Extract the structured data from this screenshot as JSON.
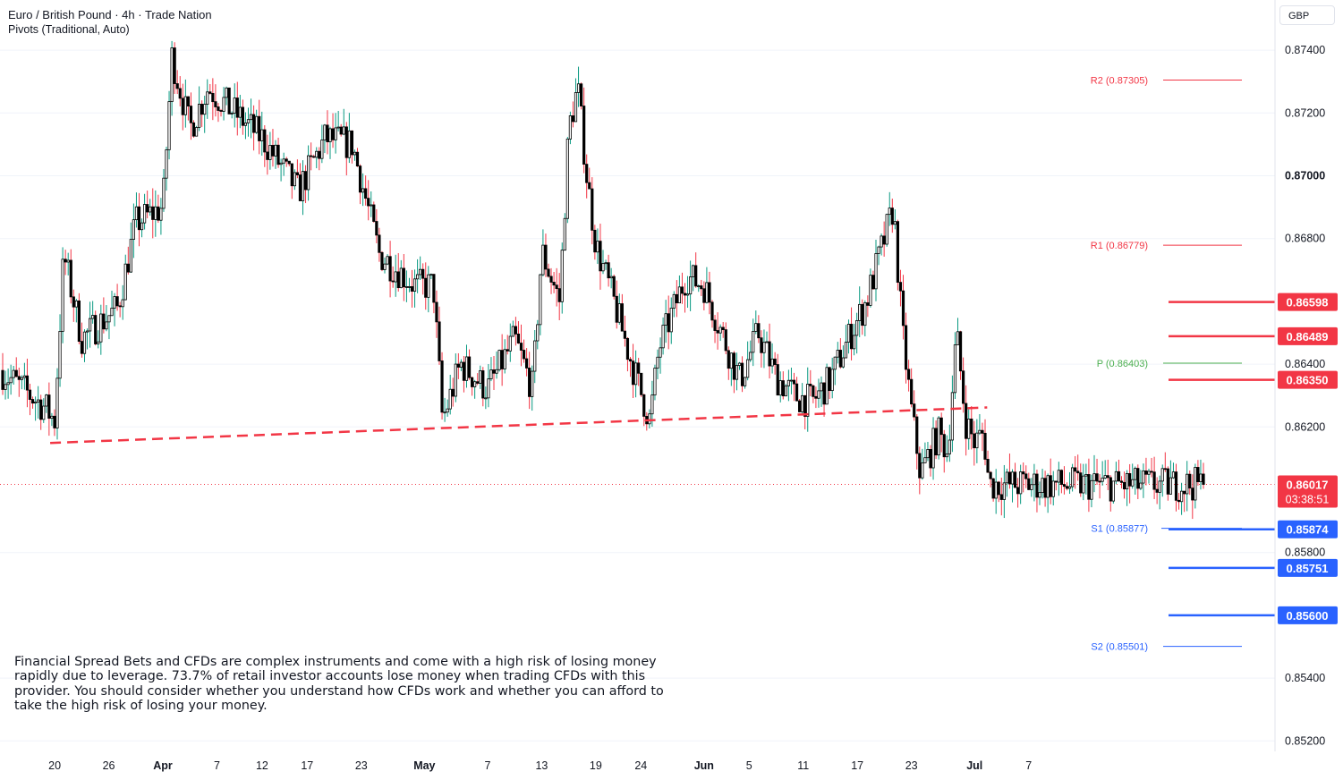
{
  "header": {
    "title": "Euro / British Pound · 4h · Trade Nation",
    "indicator": "Pivots (Traditional, Auto)"
  },
  "currency": "GBP",
  "disclaimer": "Financial Spread Bets and CFDs are complex instruments and come with a high risk of losing money rapidly due to leverage. 73.7% of retail investor accounts lose money when trading CFDs with this provider. You should consider whether you understand how CFDs work and whether you can afford to take the high risk of losing your money.",
  "colors": {
    "up": "#089981",
    "down": "#f23645",
    "body": "#000000",
    "support": "#2962ff",
    "pivot": "#4caf50",
    "trend": "#f23645"
  },
  "chart_data": {
    "type": "candlestick",
    "timeframe": "4h",
    "ylim": [
      0.8514,
      0.8756
    ],
    "y_ticks": [
      "0.87400",
      "0.87200",
      "0.87000",
      "0.86800",
      "0.86400",
      "0.86200",
      "0.85800",
      "0.85400",
      "0.85200"
    ],
    "x_ticks": [
      "20",
      "26",
      "Apr",
      "7",
      "12",
      "17",
      "23",
      "May",
      "7",
      "13",
      "19",
      "24",
      "Jun",
      "5",
      "11",
      "17",
      "23",
      "Jul",
      "7"
    ],
    "close_path": [
      {
        "label": "Mar 14",
        "value": 0.8638
      },
      {
        "label": "Mar 19",
        "value": 0.8626
      },
      {
        "label": "Mar 20",
        "value": 0.8622
      },
      {
        "label": "Mar 21",
        "value": 0.8675
      },
      {
        "label": "Mar 23",
        "value": 0.8648
      },
      {
        "label": "Mar 27",
        "value": 0.8658
      },
      {
        "label": "Mar 29",
        "value": 0.8685
      },
      {
        "label": "Apr 1",
        "value": 0.869
      },
      {
        "label": "Apr 2",
        "value": 0.8738
      },
      {
        "label": "Apr 4",
        "value": 0.8715
      },
      {
        "label": "Apr 6",
        "value": 0.8728
      },
      {
        "label": "Apr 9",
        "value": 0.872
      },
      {
        "label": "Apr 12",
        "value": 0.8712
      },
      {
        "label": "Apr 16",
        "value": 0.8695
      },
      {
        "label": "Apr 19",
        "value": 0.8712
      },
      {
        "label": "Apr 22",
        "value": 0.871
      },
      {
        "label": "Apr 25",
        "value": 0.8675
      },
      {
        "label": "Apr 29",
        "value": 0.8665
      },
      {
        "label": "May 1",
        "value": 0.8665
      },
      {
        "label": "May 2",
        "value": 0.8622
      },
      {
        "label": "May 4",
        "value": 0.864
      },
      {
        "label": "May 7",
        "value": 0.8632
      },
      {
        "label": "May 10",
        "value": 0.8648
      },
      {
        "label": "May 12",
        "value": 0.8632
      },
      {
        "label": "May 13",
        "value": 0.8676
      },
      {
        "label": "May 15",
        "value": 0.866
      },
      {
        "label": "May 16",
        "value": 0.8715
      },
      {
        "label": "May 17",
        "value": 0.8728
      },
      {
        "label": "May 18",
        "value": 0.87
      },
      {
        "label": "May 19",
        "value": 0.8678
      },
      {
        "label": "May 21",
        "value": 0.866
      },
      {
        "label": "May 23",
        "value": 0.864
      },
      {
        "label": "May 25",
        "value": 0.8622
      },
      {
        "label": "May 26",
        "value": 0.8645
      },
      {
        "label": "May 29",
        "value": 0.8668
      },
      {
        "label": "May 31",
        "value": 0.8665
      },
      {
        "label": "Jun 3",
        "value": 0.8642
      },
      {
        "label": "Jun 4",
        "value": 0.8635
      },
      {
        "label": "Jun 6",
        "value": 0.865
      },
      {
        "label": "Jun 8",
        "value": 0.8636
      },
      {
        "label": "Jun 10",
        "value": 0.863
      },
      {
        "label": "Jun 12",
        "value": 0.8628
      },
      {
        "label": "Jun 14",
        "value": 0.8635
      },
      {
        "label": "Jun 16",
        "value": 0.8648
      },
      {
        "label": "Jun 18",
        "value": 0.866
      },
      {
        "label": "Jun 20",
        "value": 0.868
      },
      {
        "label": "Jun 21",
        "value": 0.869
      },
      {
        "label": "Jun 22",
        "value": 0.865
      },
      {
        "label": "Jun 23",
        "value": 0.8625
      },
      {
        "label": "Jun 24",
        "value": 0.8605
      },
      {
        "label": "Jun 26",
        "value": 0.8618
      },
      {
        "label": "Jun 27",
        "value": 0.8612
      },
      {
        "label": "Jun 28",
        "value": 0.865
      },
      {
        "label": "Jun 29",
        "value": 0.8622
      },
      {
        "label": "Jun 30",
        "value": 0.8615
      },
      {
        "label": "Jul 1",
        "value": 0.8618
      },
      {
        "label": "Jul 1 late",
        "value": 0.86017
      }
    ],
    "pivots": [
      {
        "label": "R2 (0.87305)",
        "value": 0.87305,
        "color": "#f23645"
      },
      {
        "label": "R1 (0.86779)",
        "value": 0.86779,
        "color": "#f23645"
      },
      {
        "label": "P (0.86403)",
        "value": 0.86403,
        "color": "#4caf50"
      },
      {
        "label": "S1 (0.85877)",
        "value": 0.85877,
        "color": "#2962ff"
      },
      {
        "label": "S2 (0.85501)",
        "value": 0.85501,
        "color": "#2962ff"
      }
    ],
    "level_lines": [
      {
        "label": "0.86598",
        "value": 0.86598,
        "color": "#f23645"
      },
      {
        "label": "0.86489",
        "value": 0.86489,
        "color": "#f23645"
      },
      {
        "label": "0.86350",
        "value": 0.8635,
        "color": "#f23645"
      },
      {
        "label": "0.85874",
        "value": 0.85874,
        "color": "#2962ff"
      },
      {
        "label": "0.85751",
        "value": 0.85751,
        "color": "#2962ff"
      },
      {
        "label": "0.85600",
        "value": 0.856,
        "color": "#2962ff"
      }
    ],
    "last_price": {
      "label": "0.86017",
      "value": 0.86017,
      "countdown": "03:38:51"
    },
    "trendline": {
      "from": {
        "date": "Mar 20",
        "value": 0.86149
      },
      "to": {
        "date": "Jul 1",
        "value": 0.86262
      },
      "style": "dashed"
    }
  }
}
